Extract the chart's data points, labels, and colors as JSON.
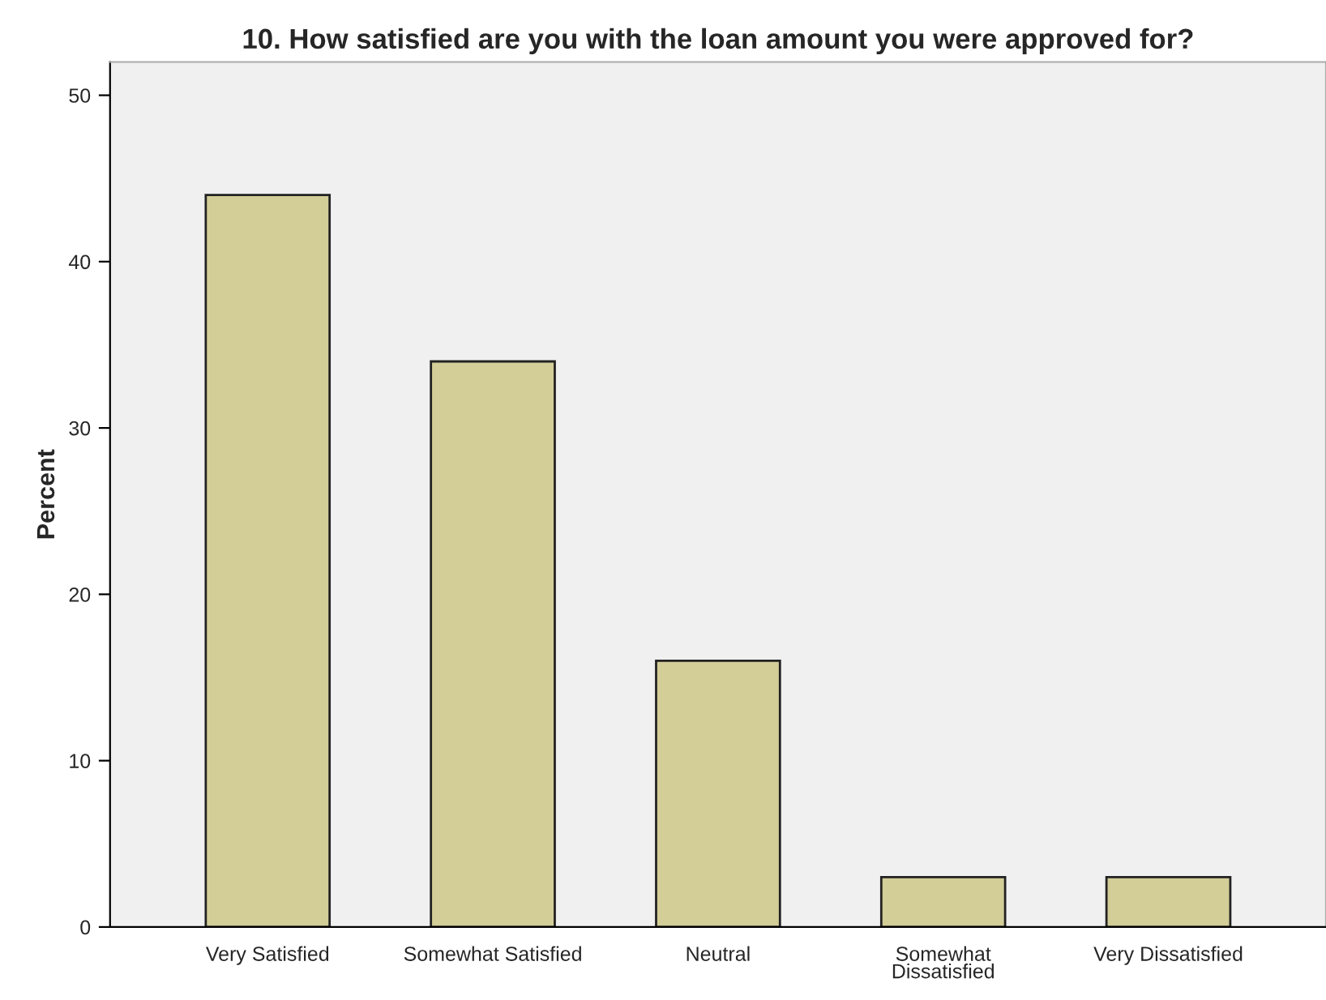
{
  "chart_data": {
    "type": "bar",
    "title": "10. How satisfied are you with the loan amount you were approved for?",
    "ylabel": "Percent",
    "categories": [
      "Very Satisfied",
      "Somewhat Satisfied",
      "Neutral",
      "Somewhat\nDissatisfied",
      "Very Dissatisfied"
    ],
    "values": [
      44,
      34,
      16,
      3,
      3
    ],
    "color": "#d3ce98",
    "ylim": [
      0,
      52
    ],
    "yticks": [
      0,
      10,
      20,
      30,
      40,
      50
    ],
    "grid": false,
    "legend": false
  }
}
